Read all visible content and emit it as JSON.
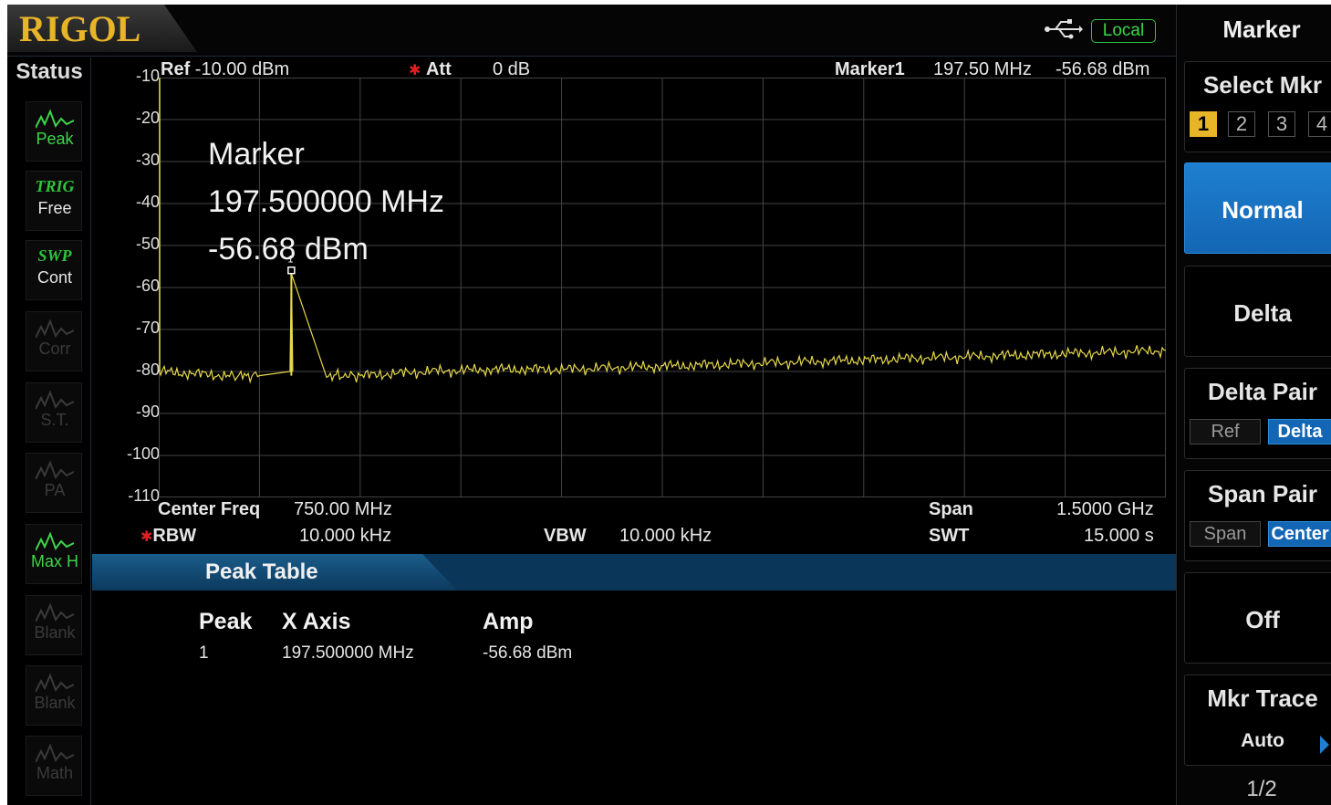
{
  "brand": "RIGOL",
  "connection": {
    "mode": "Local",
    "icon": "usb-icon"
  },
  "status": {
    "title": "Status",
    "items": [
      {
        "tag": "",
        "label": "Peak",
        "icon": "peak-icon",
        "active": true
      },
      {
        "tag": "TRIG",
        "label": "Free",
        "icon": "",
        "active": true
      },
      {
        "tag": "SWP",
        "label": "Cont",
        "icon": "",
        "active": true
      },
      {
        "tag": "",
        "label": "Corr",
        "icon": "corr-icon",
        "active": false
      },
      {
        "tag": "",
        "label": "S.T.",
        "icon": "signal-track-icon",
        "active": false
      },
      {
        "tag": "",
        "label": "PA",
        "icon": "preamp-icon",
        "active": false
      },
      {
        "tag": "",
        "label": "Max H",
        "icon": "max-hold-icon",
        "active": true
      },
      {
        "tag": "",
        "label": "Blank",
        "icon": "blank-icon",
        "active": false
      },
      {
        "tag": "",
        "label": "Blank",
        "icon": "blank-icon",
        "active": false
      },
      {
        "tag": "",
        "label": "Math",
        "icon": "math-icon",
        "active": false
      }
    ]
  },
  "header": {
    "ref_label": "Ref",
    "ref_value": "-10.00 dBm",
    "att_label": "Att",
    "att_value": "0 dB",
    "marker_label": "Marker1",
    "marker_freq": "197.50 MHz",
    "marker_amp": "-56.68 dBm"
  },
  "marker_readout": {
    "title": "Marker",
    "freq": "197.500000 MHz",
    "amp": "-56.68 dBm"
  },
  "footer": {
    "center_label": "Center Freq",
    "center_value": "750.00 MHz",
    "span_label": "Span",
    "span_value": "1.5000 GHz",
    "rbw_label": "RBW",
    "rbw_value": "10.000 kHz",
    "vbw_label": "VBW",
    "vbw_value": "10.000 kHz",
    "swt_label": "SWT",
    "swt_value": "15.000 s"
  },
  "chart_data": {
    "type": "line",
    "xlabel": "",
    "ylabel": "",
    "ylim": [
      -110,
      -10
    ],
    "xlim_mhz": [
      0,
      1500
    ],
    "yticks": [
      "-10",
      "-20",
      "-30",
      "-40",
      "-50",
      "-60",
      "-70",
      "-80",
      "-90",
      "-100",
      "-110"
    ],
    "grid": true,
    "series": [
      {
        "color": "#e6d84a",
        "x": [
          0,
          100,
          150,
          197.5,
          250,
          300,
          400,
          500,
          600,
          700,
          800,
          900,
          1000,
          1100,
          1200,
          1300,
          1400,
          1500
        ],
        "y": [
          -80,
          -81,
          -81,
          -56.68,
          -81,
          -81,
          -80,
          -79.5,
          -79.5,
          -79,
          -78.5,
          -78,
          -77.5,
          -77,
          -76.5,
          -76,
          -75.5,
          -75
        ]
      }
    ],
    "marker": {
      "x": 197.5,
      "y": -56.68
    }
  },
  "peak_table": {
    "title": "Peak Table",
    "headers": [
      "Peak",
      "X Axis",
      "Amp"
    ],
    "rows": [
      {
        "peak": "1",
        "x": "197.500000 MHz",
        "amp": "-56.68 dBm"
      }
    ]
  },
  "menu": {
    "title": "Marker",
    "select_mkr_label": "Select Mkr",
    "markers": [
      "1",
      "2",
      "3",
      "4"
    ],
    "selected_marker": "1",
    "normal_label": "Normal",
    "delta_label": "Delta",
    "delta_pair_label": "Delta Pair",
    "delta_pair_options": [
      "Ref",
      "Delta"
    ],
    "span_pair_label": "Span Pair",
    "span_pair_options": [
      "Span",
      "Center"
    ],
    "off_label": "Off",
    "mkr_trace_label": "Mkr Trace",
    "mkr_trace_value": "Auto",
    "page": "1/2",
    "accent": "#1366b4"
  }
}
